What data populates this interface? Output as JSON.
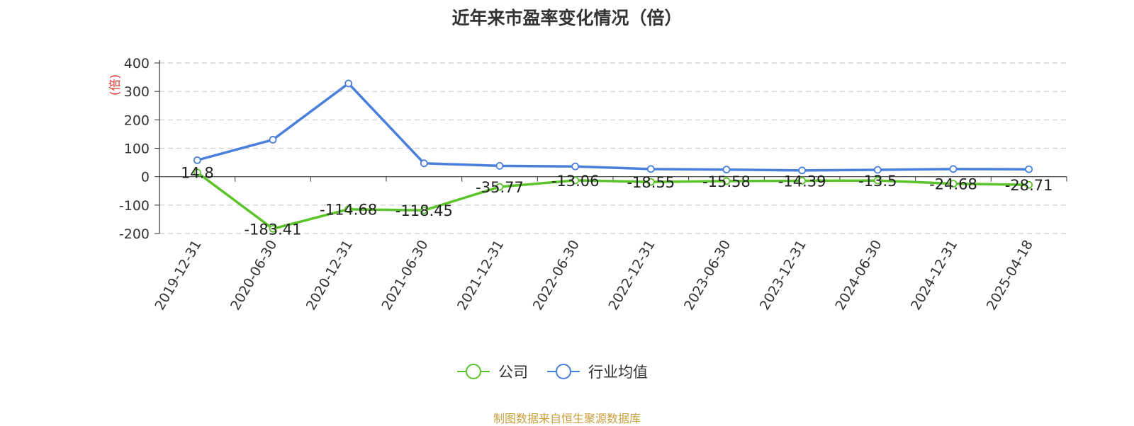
{
  "title": "近年来市盈率变化情况（倍）",
  "source": "制图数据来自恒生聚源数据库",
  "chart_data": {
    "type": "line",
    "title": "近年来市盈率变化情况（倍）",
    "ylabel": "(倍)",
    "xlabel": "",
    "ylim": [
      -200,
      400
    ],
    "yticks": [
      400,
      300,
      200,
      100,
      0,
      -100,
      -200
    ],
    "grid": true,
    "legend_position": "bottom",
    "categories": [
      "2019-12-31",
      "2020-06-30",
      "2020-12-31",
      "2021-06-30",
      "2021-12-31",
      "2022-06-30",
      "2022-12-31",
      "2023-06-30",
      "2023-12-31",
      "2024-06-30",
      "2024-12-31",
      "2025-04-18"
    ],
    "series": [
      {
        "name": "公司",
        "color": "#5cc42b",
        "show_labels": true,
        "values": [
          14.8,
          -183.41,
          -114.68,
          -118.45,
          -35.77,
          -13.06,
          -18.55,
          -15.58,
          -14.39,
          -13.5,
          -24.68,
          -28.71
        ]
      },
      {
        "name": "行业均值",
        "color": "#4a7fdc",
        "show_labels": false,
        "values": [
          58,
          130,
          328,
          47,
          38,
          36,
          27,
          25,
          22,
          24,
          27,
          26
        ]
      }
    ]
  }
}
